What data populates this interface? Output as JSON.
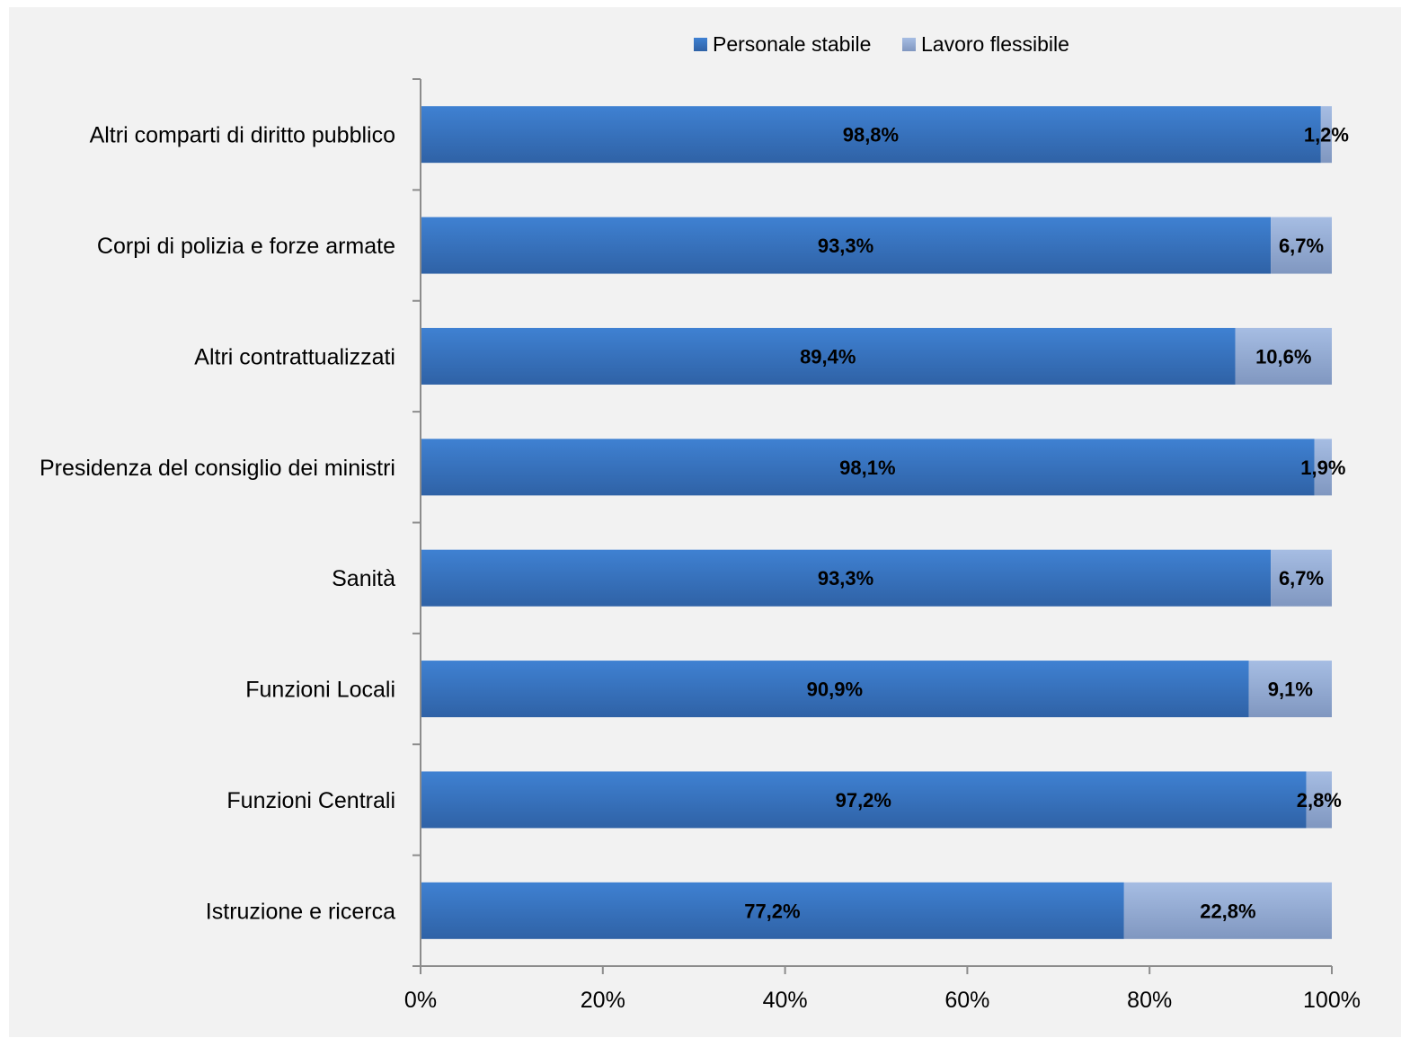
{
  "chart_data": {
    "type": "bar",
    "orientation": "horizontal",
    "stacked": "percent",
    "categories": [
      "Altri comparti di diritto pubblico",
      "Corpi di polizia e forze armate",
      "Altri contrattualizzati",
      "Presidenza del consiglio dei ministri",
      "Sanità",
      "Funzioni Locali",
      "Funzioni Centrali",
      "Istruzione e ricerca"
    ],
    "series": [
      {
        "name": "Personale stabile",
        "color": "#3a78c8",
        "values": [
          98.8,
          93.3,
          89.4,
          98.1,
          93.3,
          90.9,
          97.2,
          77.2
        ],
        "labels": [
          "98,8%",
          "93,3%",
          "89,4%",
          "98,1%",
          "93,3%",
          "90,9%",
          "97,2%",
          "77,2%"
        ]
      },
      {
        "name": "Lavoro flessibile",
        "color": "#9db3d9",
        "values": [
          1.2,
          6.7,
          10.6,
          1.9,
          6.7,
          9.1,
          2.8,
          22.8
        ],
        "labels": [
          "1,2%",
          "6,7%",
          "10,6%",
          "1,9%",
          "6,7%",
          "9,1%",
          "2,8%",
          "22,8%"
        ]
      }
    ],
    "xlim": [
      0,
      100
    ],
    "xticks": [
      0,
      20,
      40,
      60,
      80,
      100
    ],
    "xtick_labels": [
      "0%",
      "20%",
      "40%",
      "60%",
      "80%",
      "100%"
    ],
    "title": "",
    "xlabel": "",
    "ylabel": "",
    "grid": false,
    "legend_position": "top"
  }
}
